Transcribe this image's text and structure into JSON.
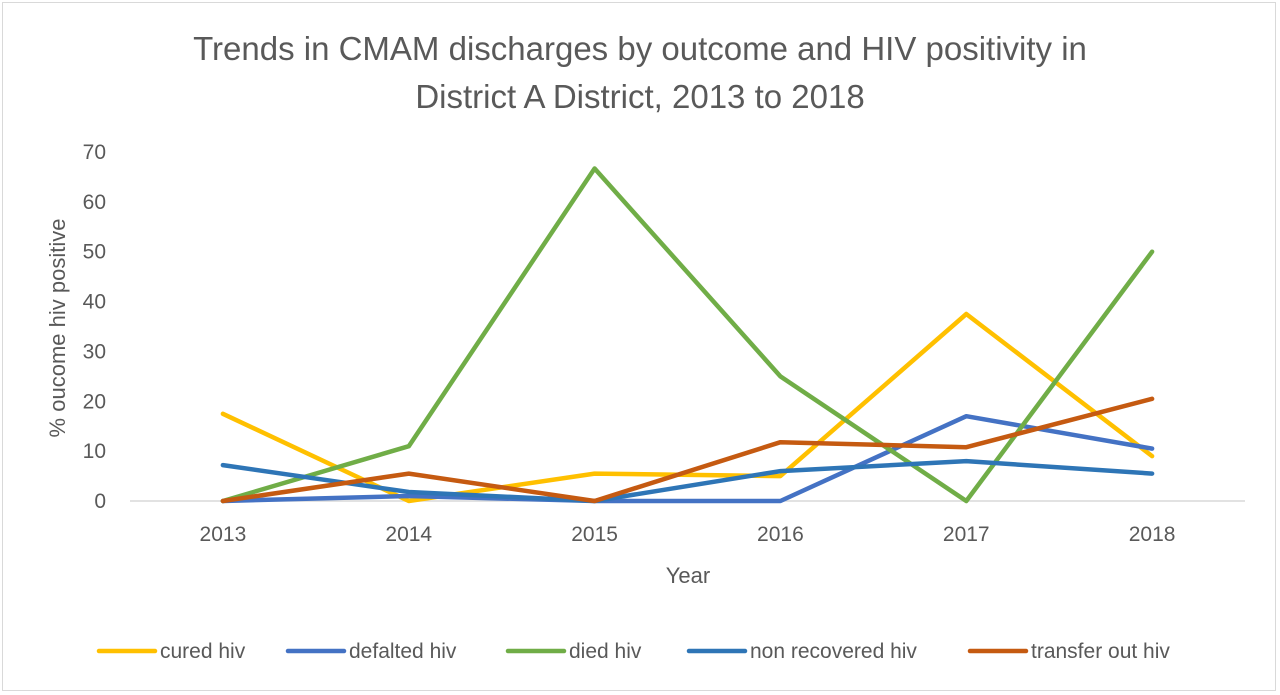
{
  "chart_data": {
    "type": "line",
    "title": "Trends in CMAM discharges by outcome and HIV positivity in District A District, 2013 to 2018",
    "title_lines": [
      "Trends in CMAM discharges by outcome and HIV positivity in",
      "District A District, 2013 to 2018"
    ],
    "xlabel": "Year",
    "ylabel": "% oucome hiv positive",
    "categories": [
      "2013",
      "2014",
      "2015",
      "2016",
      "2017",
      "2018"
    ],
    "ylim": [
      0,
      70
    ],
    "yticks": [
      "0",
      "10",
      "20",
      "30",
      "40",
      "50",
      "60",
      "70"
    ],
    "grid": false,
    "legend_position": "bottom",
    "series": [
      {
        "name": "cured hiv",
        "color": "#FFC000",
        "values": [
          17.5,
          0,
          5.5,
          5,
          37.5,
          9
        ]
      },
      {
        "name": "defalted hiv",
        "color": "#4472C4",
        "values": [
          0,
          1,
          0,
          0,
          17,
          10.5
        ]
      },
      {
        "name": "died hiv",
        "color": "#70AD47",
        "values": [
          0,
          11,
          66.7,
          25,
          0,
          50
        ]
      },
      {
        "name": "non recovered hiv",
        "color": "#2E75B6",
        "values": [
          7.2,
          1.8,
          0,
          6,
          8,
          5.5
        ]
      },
      {
        "name": "transfer out hiv",
        "color": "#C55A11",
        "values": [
          0,
          5.5,
          0,
          11.8,
          10.8,
          20.5
        ]
      }
    ]
  }
}
